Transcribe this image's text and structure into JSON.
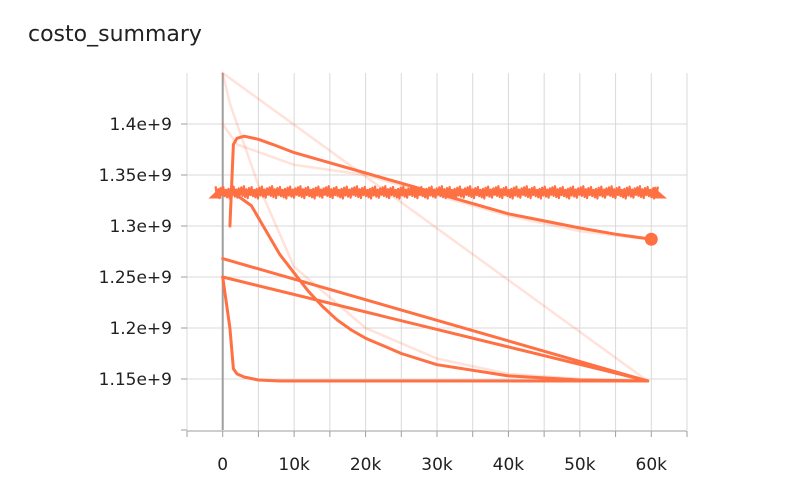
{
  "chart_data": {
    "type": "line",
    "title": "costo_summary",
    "xlabel": "",
    "ylabel": "",
    "xlim": [
      -5000,
      65000
    ],
    "ylim": [
      1.1,
      1.45
    ],
    "x_ticks": [
      0,
      10000,
      20000,
      30000,
      40000,
      50000,
      60000
    ],
    "x_tick_labels": [
      "0",
      "10k",
      "20k",
      "30k",
      "40k",
      "50k",
      "60k"
    ],
    "y_ticks": [
      1.15,
      1.2,
      1.25,
      1.3,
      1.35,
      1.4
    ],
    "y_tick_labels": [
      "1.15e+9",
      "1.2e+9",
      "1.25e+9",
      "1.3e+9",
      "1.35e+9",
      "1.4e+9"
    ],
    "y_scale_note": "values in units of 1e9",
    "grid": true,
    "series_color": "#ff7043",
    "series": [
      {
        "role": "faint-raw",
        "x": [
          0,
          1000,
          5000,
          10000,
          20000,
          30000,
          40000,
          50000,
          59500
        ],
        "y": [
          1.45,
          1.42,
          1.34,
          1.26,
          1.2,
          1.17,
          1.155,
          1.15,
          1.148
        ]
      },
      {
        "role": "faint-raw",
        "x": [
          0,
          59500
        ],
        "y": [
          1.45,
          1.148
        ]
      },
      {
        "role": "faint-raw",
        "x": [
          0,
          2000,
          10000,
          20000,
          30000,
          40000,
          50000,
          59500
        ],
        "y": [
          1.4,
          1.38,
          1.36,
          1.35,
          1.33,
          1.31,
          1.295,
          1.287
        ]
      },
      {
        "role": "smoothed",
        "x": [
          1000,
          1500,
          2000,
          3000,
          5000,
          7000,
          10000,
          15000,
          20000,
          25000,
          30000,
          35000,
          40000,
          45000,
          50000,
          55000,
          59000,
          60000
        ],
        "y": [
          1.3,
          1.38,
          1.386,
          1.388,
          1.385,
          1.38,
          1.372,
          1.362,
          1.352,
          1.342,
          1.332,
          1.322,
          1.312,
          1.305,
          1.298,
          1.292,
          1.288,
          1.287
        ]
      },
      {
        "role": "smoothed",
        "x": [
          1500,
          2000,
          4000,
          6000,
          8000,
          10000,
          12000,
          14000,
          16000,
          18000,
          20000,
          25000,
          30000,
          40000,
          50000,
          59500
        ],
        "y": [
          1.332,
          1.33,
          1.32,
          1.296,
          1.272,
          1.254,
          1.236,
          1.221,
          1.208,
          1.198,
          1.19,
          1.175,
          1.164,
          1.153,
          1.149,
          1.148
        ],
        "note": "descending smoothed curve"
      },
      {
        "role": "smoothed",
        "x": [
          59500,
          0,
          59500,
          0,
          59500
        ],
        "y": [
          1.148,
          1.25,
          1.148,
          1.268,
          1.148
        ]
      },
      {
        "role": "smoothed",
        "x": [
          0,
          1000,
          1500,
          2000,
          3000,
          5000,
          8000,
          15000,
          30000,
          45000,
          59500
        ],
        "y": [
          1.25,
          1.2,
          1.16,
          1.155,
          1.152,
          1.149,
          1.148,
          1.148,
          1.148,
          1.148,
          1.148
        ],
        "note": "fast-drop smoothed curve"
      },
      {
        "role": "noisy-band",
        "x_start": -1000,
        "x_end": 61000,
        "y_low": 1.327,
        "y_high": 1.339
      }
    ],
    "last_point": {
      "x": 60000,
      "y": 1.287
    }
  }
}
